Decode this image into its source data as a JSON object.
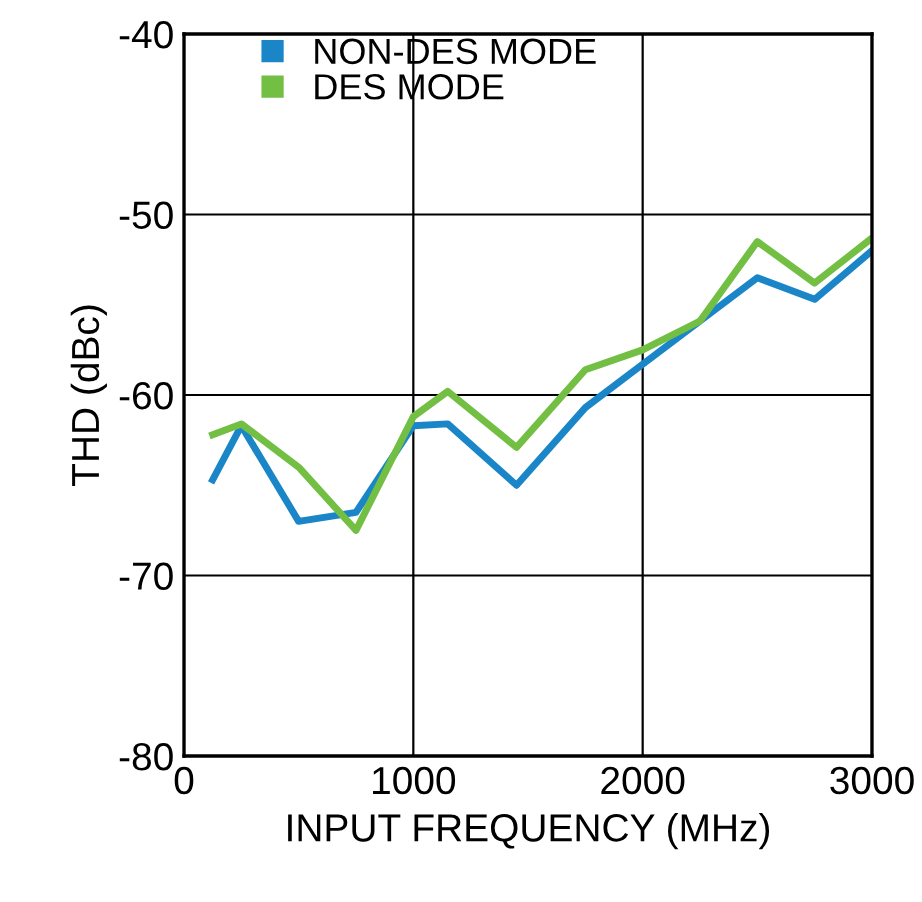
{
  "chart_data": {
    "type": "line",
    "xlabel": "INPUT FREQUENCY (MHz)",
    "ylabel": "THD (dBc)",
    "x": [
      125,
      250,
      500,
      750,
      1000,
      1150,
      1450,
      1750,
      2000,
      2250,
      2500,
      2750,
      3000
    ],
    "series": [
      {
        "name": "NON-DES MODE",
        "color": "#1a86c8",
        "values": [
          -64.7,
          -61.7,
          -67.0,
          -66.5,
          -61.7,
          -61.6,
          -65.0,
          -60.7,
          -58.3,
          -55.9,
          -53.5,
          -54.7,
          -52.0
        ]
      },
      {
        "name": "DES MODE",
        "color": "#72bf44",
        "values": [
          -62.2,
          -61.6,
          -64.0,
          -67.5,
          -61.2,
          -59.8,
          -62.9,
          -58.6,
          -57.5,
          -55.9,
          -51.5,
          -53.8,
          -51.3
        ]
      }
    ],
    "xlim": [
      0,
      3000
    ],
    "xticks": [
      0,
      1000,
      2000,
      3000
    ],
    "ylim": [
      -80,
      -40
    ],
    "yticks": [
      -80,
      -70,
      -60,
      -50,
      -40
    ],
    "grid": true,
    "legend": "top left",
    "marker": "none",
    "line_style": "solid"
  }
}
